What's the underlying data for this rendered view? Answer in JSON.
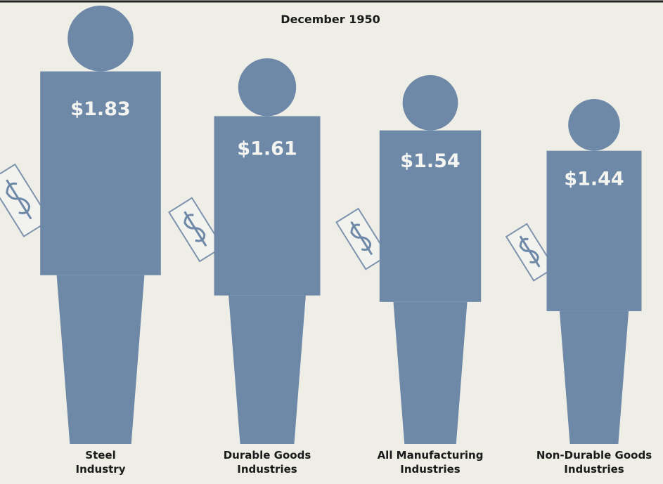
{
  "chart_data": {
    "type": "pictogram",
    "title": "December 1950",
    "categories": [
      "Steel\nIndustry",
      "Durable Goods\nIndustries",
      "All Manufacturing\nIndustries",
      "Non-Durable Goods\nIndustries"
    ],
    "values": [
      1.83,
      1.61,
      1.54,
      1.44
    ],
    "value_labels": [
      "$1.83",
      "$1.61",
      "$1.54",
      "$1.44"
    ],
    "color": "#6e89a8"
  }
}
